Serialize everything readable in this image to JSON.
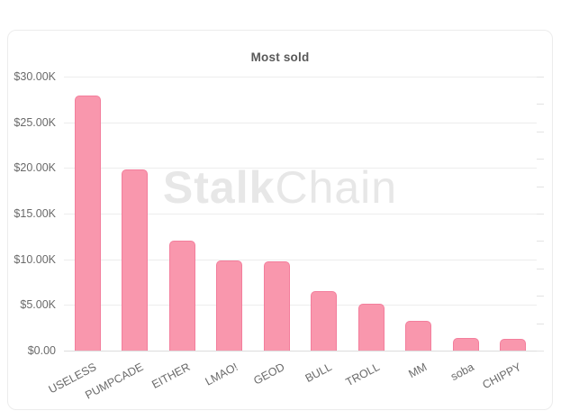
{
  "watermark": {
    "bold": "Stalk",
    "light": "Chain"
  },
  "chart_data": {
    "type": "bar",
    "title": "Most sold",
    "categories": [
      "USELESS",
      "PUMPCADE",
      "EITHER",
      "LMAO!",
      "GEOD",
      "BULL",
      "TROLL",
      "MM",
      "soba",
      "CHIPPY"
    ],
    "values": [
      27900,
      19800,
      12000,
      9900,
      9800,
      6500,
      5100,
      3300,
      1400,
      1300
    ],
    "xlabel": "",
    "ylabel": "",
    "ylim": [
      0,
      30000
    ],
    "y_ticks": [
      {
        "label": "$30.00K",
        "value": 30000
      },
      {
        "label": "$25.00K",
        "value": 25000
      },
      {
        "label": "$20.00K",
        "value": 20000
      },
      {
        "label": "$15.00K",
        "value": 15000
      },
      {
        "label": "$10.00K",
        "value": 10000
      },
      {
        "label": "$5.00K",
        "value": 5000
      },
      {
        "label": "$0.00",
        "value": 0
      }
    ],
    "right_minor_tick_count": 11,
    "grid": true,
    "legend": "none",
    "colors": {
      "bar_fill": "#F997AD",
      "bar_border": "#F37E9C",
      "grid": "#ededed",
      "axis_baseline": "#dcdcdc",
      "title_text": "#595959",
      "axis_text": "#6a6a6a",
      "watermark_text": "#e7e7e7",
      "card_border": "#ececec",
      "background": "#ffffff"
    }
  }
}
